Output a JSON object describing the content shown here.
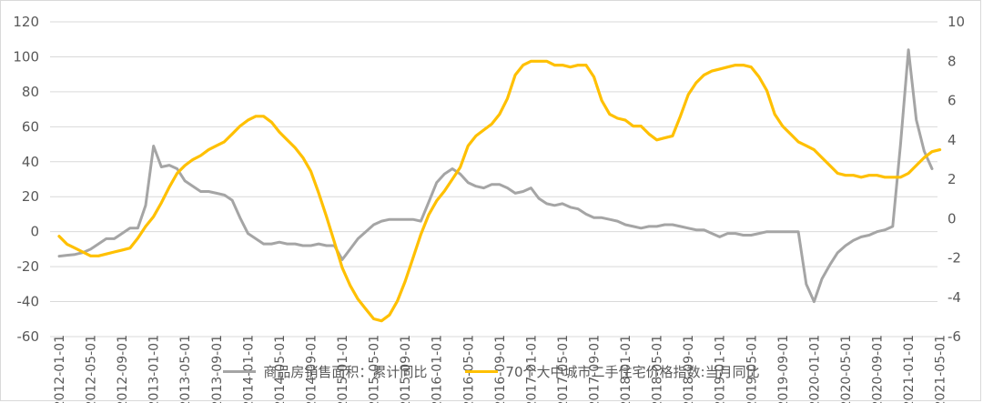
{
  "chart_data": {
    "type": "line",
    "title": "",
    "xlabel": "",
    "ylabel": "",
    "left_axis": {
      "ylim": [
        -60,
        120
      ],
      "ticks": [
        "-60",
        "-40",
        "-20",
        "0",
        "20",
        "40",
        "60",
        "80",
        "100",
        "120"
      ]
    },
    "right_axis": {
      "ylim": [
        -6,
        10
      ],
      "ticks": [
        "-6",
        "-4",
        "-2",
        "0",
        "2",
        "4",
        "6",
        "8",
        "10"
      ]
    },
    "x_tick_labels": [
      "2012-01-01",
      "2012-05-01",
      "2012-09-01",
      "2013-01-01",
      "2013-05-01",
      "2013-09-01",
      "2014-01-01",
      "2014-05-01",
      "2014-09-01",
      "2015-01-01",
      "2015-05-01",
      "2015-09-01",
      "2016-01-01",
      "2016-05-01",
      "2016-09-01",
      "2017-01-01",
      "2017-05-01",
      "2017-09-01",
      "2018-01-01",
      "2018-05-01",
      "2018-09-01",
      "2019-01-01",
      "2019-05-01",
      "2019-09-01",
      "2020-01-01",
      "2020-05-01",
      "2020-09-01",
      "2021-01-01",
      "2021-05-01"
    ],
    "grid": "horizontal",
    "legend_position": "bottom",
    "series": [
      {
        "name": "商品房销售面积：累计同比",
        "color": "#a5a5a5",
        "axis": "left",
        "start": "2012-01",
        "values": [
          -14,
          -13.5,
          -13,
          -12,
          -10,
          -7,
          -4,
          -4,
          -1,
          2,
          2,
          15,
          49,
          37,
          38,
          36,
          29,
          26,
          23,
          23,
          22,
          21,
          18,
          8,
          -1,
          -4,
          -7,
          -7,
          -6,
          -7,
          -7,
          -8,
          -8,
          -7,
          -8,
          -8,
          -16,
          -10,
          -4,
          0,
          4,
          6,
          7,
          7,
          7,
          7,
          6,
          17,
          28,
          33,
          36,
          33,
          28,
          26,
          25,
          27,
          27,
          25,
          22,
          23,
          25,
          19,
          16,
          15,
          16,
          14,
          13,
          10,
          8,
          8,
          7,
          6,
          4,
          3,
          2,
          3,
          3,
          4,
          4,
          3,
          2,
          1,
          1,
          -1,
          -3,
          -1,
          -1,
          -2,
          -2,
          -1,
          0,
          0,
          0,
          0,
          0,
          -30,
          -40,
          -27,
          -19,
          -12,
          -8,
          -5,
          -3,
          -2,
          0,
          1,
          3,
          50,
          104,
          64,
          46,
          36
        ]
      },
      {
        "name": "70个大中城市二手住宅价格指数:当月同比",
        "color": "#ffc000",
        "axis": "right",
        "start": "2012-01",
        "values": [
          -0.9,
          -1.3,
          -1.5,
          -1.7,
          -1.9,
          -1.9,
          -1.8,
          -1.7,
          -1.6,
          -1.5,
          -1.0,
          -0.4,
          0.1,
          0.8,
          1.6,
          2.3,
          2.7,
          3.0,
          3.2,
          3.5,
          3.7,
          3.9,
          4.3,
          4.7,
          5.0,
          5.2,
          5.2,
          4.9,
          4.4,
          4.0,
          3.6,
          3.1,
          2.4,
          1.3,
          0.1,
          -1.2,
          -2.5,
          -3.4,
          -4.1,
          -4.6,
          -5.1,
          -5.2,
          -4.9,
          -4.2,
          -3.2,
          -2.0,
          -0.8,
          0.2,
          0.9,
          1.4,
          2.0,
          2.6,
          3.7,
          4.2,
          4.5,
          4.8,
          5.3,
          6.1,
          7.3,
          7.8,
          8.0,
          8.0,
          8.0,
          7.8,
          7.8,
          7.7,
          7.8,
          7.8,
          7.2,
          6.0,
          5.3,
          5.1,
          5.0,
          4.7,
          4.7,
          4.3,
          4.0,
          4.1,
          4.2,
          5.2,
          6.3,
          6.9,
          7.3,
          7.5,
          7.6,
          7.7,
          7.8,
          7.8,
          7.7,
          7.2,
          6.5,
          5.3,
          4.7,
          4.3,
          3.9,
          3.7,
          3.5,
          3.1,
          2.7,
          2.3,
          2.2,
          2.2,
          2.1,
          2.2,
          2.2,
          2.1,
          2.1,
          2.1,
          2.3,
          2.7,
          3.1,
          3.4,
          3.5
        ]
      }
    ]
  }
}
